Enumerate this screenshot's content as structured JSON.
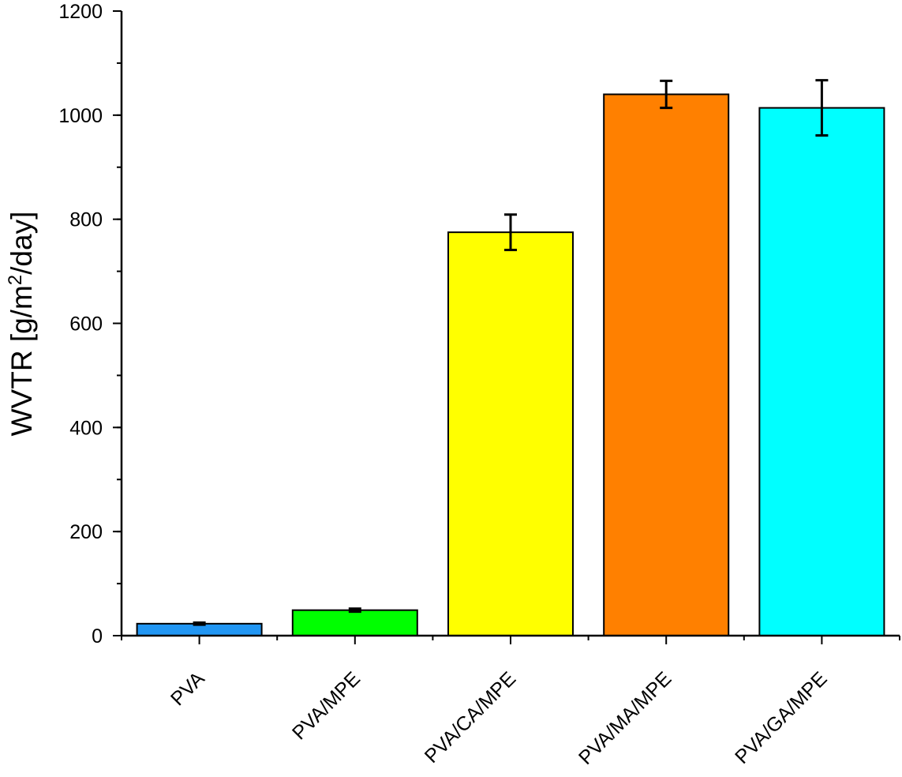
{
  "chart_data": {
    "type": "bar",
    "title": "",
    "xlabel": "",
    "ylabel": "WVTR [g/m2/day]",
    "ylabel_parts": {
      "main": "WVTR [g/m",
      "sup": "2",
      "rest": "/day]"
    },
    "ylim": [
      0,
      1200
    ],
    "yticks": [
      0,
      200,
      400,
      600,
      800,
      1000,
      1200
    ],
    "yminor_step": 100,
    "grid": false,
    "legend": "none",
    "categories": [
      "PVA",
      "PVA/MPE",
      "PVA/CA/MPE",
      "PVA/MA/MPE",
      "PVA/GA/MPE"
    ],
    "values": [
      23,
      49,
      775,
      1040,
      1014
    ],
    "errors": [
      2,
      3,
      34,
      26,
      53
    ],
    "colors": [
      "#2196f3",
      "#00ff00",
      "#ffff00",
      "#ff8000",
      "#00ffff"
    ]
  }
}
